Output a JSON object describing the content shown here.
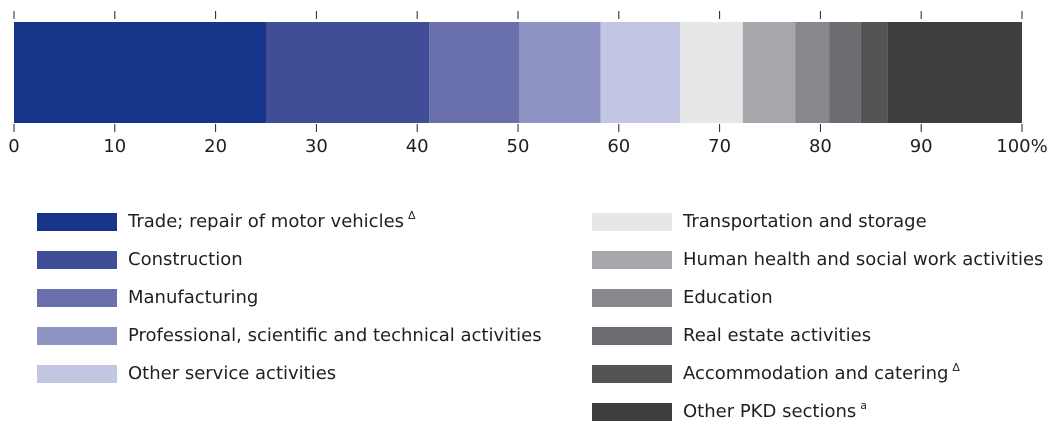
{
  "chart_data": {
    "type": "stacked_bar_horizontal",
    "xlim": [
      0,
      100
    ],
    "xticks": [
      0,
      10,
      20,
      30,
      40,
      50,
      60,
      70,
      80,
      90,
      {
        "value": 100,
        "label": "100%"
      }
    ],
    "series": [
      {
        "name": "Trade; repair of motor vehicles",
        "marker": "Δ",
        "color": "#17358a",
        "values": [
          25.0
        ]
      },
      {
        "name": "Construction",
        "color": "#3f4e96",
        "values": [
          16.2
        ]
      },
      {
        "name": "Manufacturing",
        "color": "#6a70ab",
        "values": [
          8.9
        ]
      },
      {
        "name": "Professional, scientific and technical activities",
        "color": "#8f94c4",
        "values": [
          8.1
        ]
      },
      {
        "name": "Other service activities",
        "color": "#c3c6e2",
        "values": [
          7.9
        ]
      },
      {
        "name": "Transportation and storage",
        "color": "#e6e7e9",
        "values": [
          6.2
        ]
      },
      {
        "name": "Human health and social work activities",
        "color": "#a7a8ab",
        "values": [
          5.2
        ]
      },
      {
        "name": "Education",
        "color": "#87888b",
        "values": [
          3.4
        ]
      },
      {
        "name": "Real estate activities",
        "color": "#6c6d70",
        "values": [
          3.1
        ]
      },
      {
        "name": "Accommodation and catering",
        "marker": "Δ",
        "color": "#545456",
        "values": [
          2.7
        ]
      },
      {
        "name": "Other PKD sections",
        "marker": "a",
        "color": "#3e3e3f",
        "values": [
          13.3
        ]
      }
    ]
  }
}
